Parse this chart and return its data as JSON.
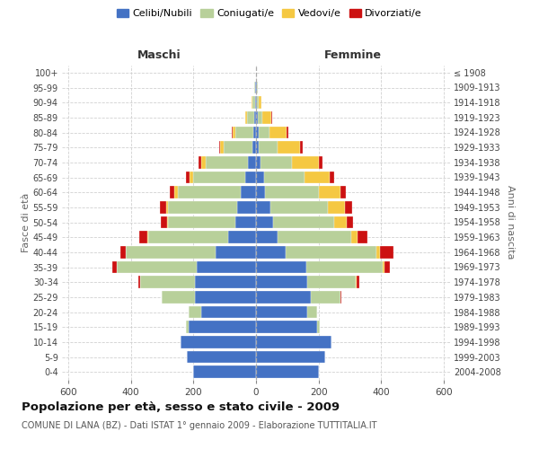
{
  "age_groups": [
    "0-4",
    "5-9",
    "10-14",
    "15-19",
    "20-24",
    "25-29",
    "30-34",
    "35-39",
    "40-44",
    "45-49",
    "50-54",
    "55-59",
    "60-64",
    "65-69",
    "70-74",
    "75-79",
    "80-84",
    "85-89",
    "90-94",
    "95-99",
    "100+"
  ],
  "birth_years": [
    "2004-2008",
    "1999-2003",
    "1994-1998",
    "1989-1993",
    "1984-1988",
    "1979-1983",
    "1974-1978",
    "1969-1973",
    "1964-1968",
    "1959-1963",
    "1954-1958",
    "1949-1953",
    "1944-1948",
    "1939-1943",
    "1934-1938",
    "1929-1933",
    "1924-1928",
    "1919-1923",
    "1914-1918",
    "1909-1913",
    "≤ 1908"
  ],
  "males": {
    "celibe": [
      200,
      220,
      240,
      215,
      175,
      195,
      195,
      190,
      130,
      90,
      65,
      60,
      50,
      35,
      25,
      12,
      10,
      5,
      3,
      2,
      0
    ],
    "coniugato": [
      0,
      0,
      2,
      10,
      40,
      105,
      175,
      255,
      285,
      255,
      215,
      220,
      200,
      165,
      135,
      90,
      55,
      25,
      8,
      3,
      1
    ],
    "vedovo": [
      0,
      0,
      0,
      0,
      0,
      0,
      0,
      1,
      2,
      2,
      5,
      8,
      10,
      12,
      15,
      12,
      10,
      5,
      2,
      0,
      0
    ],
    "divorziato": [
      0,
      0,
      0,
      0,
      0,
      2,
      5,
      12,
      15,
      25,
      18,
      18,
      15,
      12,
      10,
      5,
      2,
      0,
      0,
      0,
      0
    ]
  },
  "females": {
    "nubile": [
      200,
      220,
      240,
      195,
      165,
      175,
      165,
      160,
      95,
      70,
      55,
      45,
      30,
      25,
      15,
      10,
      8,
      5,
      3,
      2,
      0
    ],
    "coniugata": [
      0,
      0,
      1,
      8,
      30,
      95,
      155,
      245,
      290,
      235,
      195,
      185,
      170,
      130,
      100,
      60,
      35,
      15,
      5,
      3,
      1
    ],
    "vedova": [
      0,
      0,
      0,
      0,
      0,
      1,
      2,
      5,
      10,
      20,
      40,
      55,
      70,
      80,
      85,
      70,
      55,
      30,
      8,
      2,
      0
    ],
    "divorziata": [
      0,
      0,
      0,
      0,
      0,
      3,
      8,
      18,
      45,
      30,
      20,
      22,
      18,
      15,
      12,
      8,
      5,
      2,
      0,
      0,
      0
    ]
  },
  "colors": {
    "celibe": "#4472C4",
    "coniugato": "#B8D09A",
    "vedovo": "#F5C842",
    "divorziato": "#CC1111"
  },
  "xlim": 620,
  "title": "Popolazione per età, sesso e stato civile - 2009",
  "subtitle": "COMUNE DI LANA (BZ) - Dati ISTAT 1° gennaio 2009 - Elaborazione TUTTITALIA.IT",
  "ylabel_left": "Fasce di età",
  "ylabel_right": "Anni di nascita",
  "xlabel_maschi": "Maschi",
  "xlabel_femmine": "Femmine",
  "bg_color": "#FFFFFF",
  "grid_color": "#CCCCCC"
}
